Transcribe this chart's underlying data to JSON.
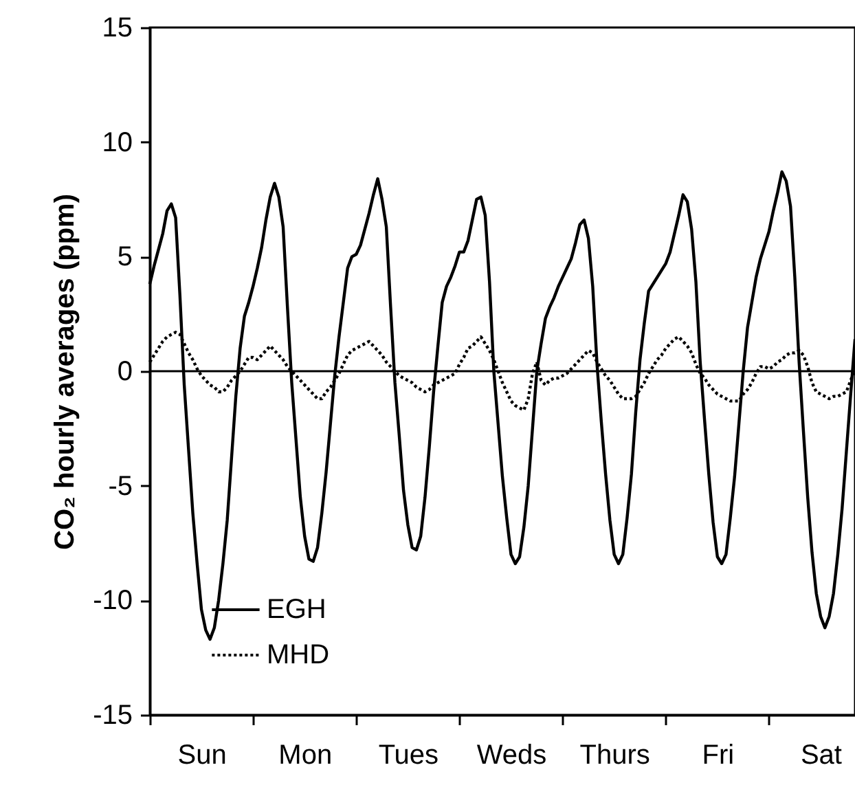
{
  "chart_data": {
    "type": "line",
    "ylabel": "CO₂ hourly averages (ppm)",
    "categories": [
      null,
      null,
      null,
      null,
      null,
      null,
      null,
      null,
      null,
      null,
      null,
      null,
      "Sun",
      null,
      null,
      null,
      null,
      null,
      null,
      null,
      null,
      null,
      null,
      null,
      null,
      null,
      null,
      null,
      null,
      null,
      null,
      null,
      null,
      null,
      null,
      null,
      "Mon",
      null,
      null,
      null,
      null,
      null,
      null,
      null,
      null,
      null,
      null,
      null,
      null,
      null,
      null,
      null,
      null,
      null,
      null,
      null,
      null,
      null,
      null,
      null,
      "Tues",
      null,
      null,
      null,
      null,
      null,
      null,
      null,
      null,
      null,
      null,
      null,
      null,
      null,
      null,
      null,
      null,
      null,
      null,
      null,
      null,
      null,
      null,
      null,
      "Weds",
      null,
      null,
      null,
      null,
      null,
      null,
      null,
      null,
      null,
      null,
      null,
      null,
      null,
      null,
      null,
      null,
      null,
      null,
      null,
      null,
      null,
      null,
      null,
      "Thurs",
      null,
      null,
      null,
      null,
      null,
      null,
      null,
      null,
      null,
      null,
      null,
      null,
      null,
      null,
      null,
      null,
      null,
      null,
      null,
      null,
      null,
      null,
      null,
      "Fri",
      null,
      null,
      null,
      null,
      null,
      null,
      null,
      null,
      null,
      null,
      null,
      null,
      null,
      null,
      null,
      null,
      null,
      null,
      null,
      null,
      null,
      null,
      null,
      "Sat",
      null,
      null,
      null,
      null,
      null,
      null,
      null,
      null
    ],
    "ylim": [
      -15,
      15
    ],
    "yticks": [
      -15,
      -10,
      -5,
      0,
      5,
      10,
      15
    ],
    "grid": false,
    "legend": "bottom",
    "marker": "none",
    "ref_lines": [
      {
        "axis": "y",
        "value": 0,
        "color": "#000000",
        "line_style": "solid"
      }
    ],
    "series": [
      {
        "name": "EGH",
        "color": "#000000",
        "line_style": "solid",
        "values": [
          3.8,
          4.6,
          5.3,
          6.0,
          7.0,
          7.3,
          6.7,
          3.3,
          -0.6,
          -3.4,
          -6.2,
          -8.4,
          -10.4,
          -11.3,
          -11.7,
          -11.2,
          -10.0,
          -8.4,
          -6.5,
          -3.8,
          -1.1,
          1.0,
          2.4,
          3.0,
          3.7,
          4.5,
          5.4,
          6.6,
          7.6,
          8.2,
          7.6,
          6.3,
          2.8,
          -0.5,
          -3.0,
          -5.5,
          -7.2,
          -8.2,
          -8.3,
          -7.7,
          -6.2,
          -4.4,
          -2.3,
          -0.2,
          1.5,
          3.0,
          4.5,
          5.0,
          5.1,
          5.5,
          6.2,
          6.9,
          7.7,
          8.4,
          7.5,
          6.3,
          2.8,
          -0.5,
          -2.8,
          -5.2,
          -6.7,
          -7.7,
          -7.8,
          -7.2,
          -5.5,
          -3.3,
          -0.9,
          1.1,
          3.0,
          3.7,
          4.1,
          4.6,
          5.2,
          5.2,
          5.7,
          6.6,
          7.5,
          7.6,
          6.8,
          3.9,
          0,
          -2.3,
          -4.6,
          -6.4,
          -8.0,
          -8.4,
          -8.1,
          -6.8,
          -5.0,
          -2.5,
          0,
          1.2,
          2.3,
          2.8,
          3.2,
          3.7,
          4.1,
          4.5,
          4.9,
          5.6,
          6.4,
          6.6,
          5.8,
          3.7,
          0.3,
          -2.2,
          -4.5,
          -6.5,
          -8.0,
          -8.4,
          -8.0,
          -6.4,
          -4.5,
          -1.8,
          0.5,
          2.1,
          3.5,
          3.8,
          4.1,
          4.4,
          4.7,
          5.2,
          6.0,
          6.8,
          7.7,
          7.4,
          6.2,
          3.9,
          0.4,
          -2.1,
          -4.5,
          -6.6,
          -8.1,
          -8.4,
          -8.0,
          -6.4,
          -4.6,
          -2.3,
          0,
          1.9,
          3.0,
          4.1,
          4.9,
          5.5,
          6.1,
          7.0,
          7.8,
          8.7,
          8.3,
          7.2,
          4.1,
          0.4,
          -2.6,
          -5.5,
          -7.9,
          -9.7,
          -10.7,
          -11.2,
          -10.7,
          -9.7,
          -8.0,
          -6.0,
          -3.5,
          -1.0,
          1.4
        ]
      },
      {
        "name": "MHD",
        "color": "#000000",
        "line_style": "dotted",
        "values": [
          0.4,
          0.7,
          1.0,
          1.3,
          1.5,
          1.6,
          1.7,
          1.6,
          1.2,
          0.8,
          0.5,
          0.1,
          -0.2,
          -0.4,
          -0.6,
          -0.7,
          -0.9,
          -0.9,
          -0.7,
          -0.4,
          -0.2,
          0.0,
          0.3,
          0.6,
          0.6,
          0.5,
          0.7,
          0.9,
          1.1,
          0.9,
          0.7,
          0.5,
          0.2,
          0.0,
          -0.2,
          -0.4,
          -0.6,
          -0.8,
          -1.0,
          -1.2,
          -1.2,
          -0.9,
          -0.7,
          -0.4,
          -0.1,
          0.3,
          0.7,
          0.9,
          1.0,
          1.1,
          1.2,
          1.3,
          1.1,
          0.9,
          0.7,
          0.4,
          0.2,
          0.0,
          -0.2,
          -0.3,
          -0.4,
          -0.5,
          -0.7,
          -0.8,
          -0.9,
          -0.8,
          -0.6,
          -0.5,
          -0.4,
          -0.3,
          -0.2,
          -0.1,
          0.3,
          0.6,
          1.0,
          1.1,
          1.3,
          1.5,
          1.2,
          0.9,
          0.5,
          0.0,
          -0.5,
          -0.9,
          -1.3,
          -1.5,
          -1.6,
          -1.7,
          -1.2,
          -0.1,
          0.4,
          -0.4,
          -0.6,
          -0.4,
          -0.3,
          -0.3,
          -0.2,
          -0.1,
          0.1,
          0.3,
          0.5,
          0.7,
          0.9,
          0.8,
          0.4,
          0.1,
          -0.2,
          -0.4,
          -0.7,
          -1.0,
          -1.2,
          -1.2,
          -1.2,
          -1.1,
          -0.8,
          -0.5,
          -0.1,
          0.2,
          0.5,
          0.7,
          1.0,
          1.2,
          1.4,
          1.5,
          1.3,
          1.1,
          0.8,
          0.3,
          -0.1,
          -0.3,
          -0.6,
          -0.8,
          -1.0,
          -1.1,
          -1.2,
          -1.3,
          -1.3,
          -1.3,
          -1.0,
          -0.8,
          -0.5,
          -0.1,
          0.2,
          0.2,
          0.1,
          0.2,
          0.4,
          0.5,
          0.7,
          0.8,
          0.8,
          0.9,
          0.7,
          0.2,
          -0.5,
          -0.9,
          -1.0,
          -1.1,
          -1.2,
          -1.1,
          -1.1,
          -1.0,
          -0.9,
          -0.4,
          0.1
        ]
      }
    ]
  }
}
